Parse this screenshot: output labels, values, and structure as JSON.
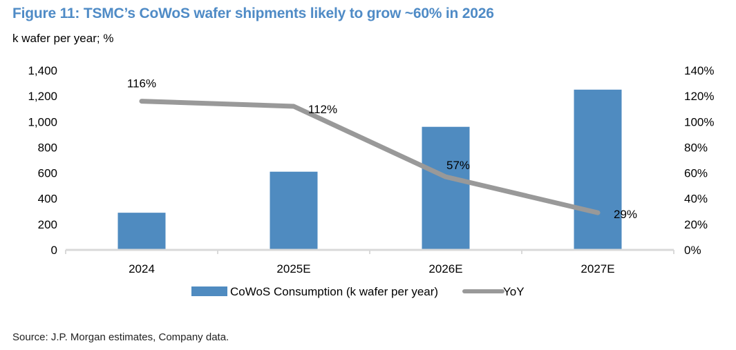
{
  "title": "Figure 11: TSMC’s CoWoS wafer shipments likely to grow ~60% in 2026",
  "subtitle": "k wafer per year; %",
  "source": "Source: J.P. Morgan estimates, Company data.",
  "colors": {
    "bar": "#4f8bc0",
    "line": "#999999",
    "title": "#4f8bc6"
  },
  "chart_data": {
    "type": "bar",
    "categories": [
      "2024",
      "2025E",
      "2026E",
      "2027E"
    ],
    "series": [
      {
        "name": "CoWoS Consumption (k wafer per year)",
        "type": "bar",
        "axis": "left",
        "values": [
          290,
          610,
          960,
          1250
        ]
      },
      {
        "name": "YoY",
        "type": "line",
        "axis": "right",
        "values": [
          116,
          112,
          57,
          29
        ],
        "labels": [
          "116%",
          "112%",
          "57%",
          "29%"
        ]
      }
    ],
    "y_left": {
      "ylim": [
        0,
        1400
      ],
      "ticks": [
        "0",
        "200",
        "400",
        "600",
        "800",
        "1,000",
        "1,200",
        "1,400"
      ]
    },
    "y_right": {
      "ylim": [
        0,
        140
      ],
      "ticks": [
        "0%",
        "20%",
        "40%",
        "60%",
        "80%",
        "100%",
        "120%",
        "140%"
      ]
    },
    "grid": false,
    "legend": "bottom"
  }
}
